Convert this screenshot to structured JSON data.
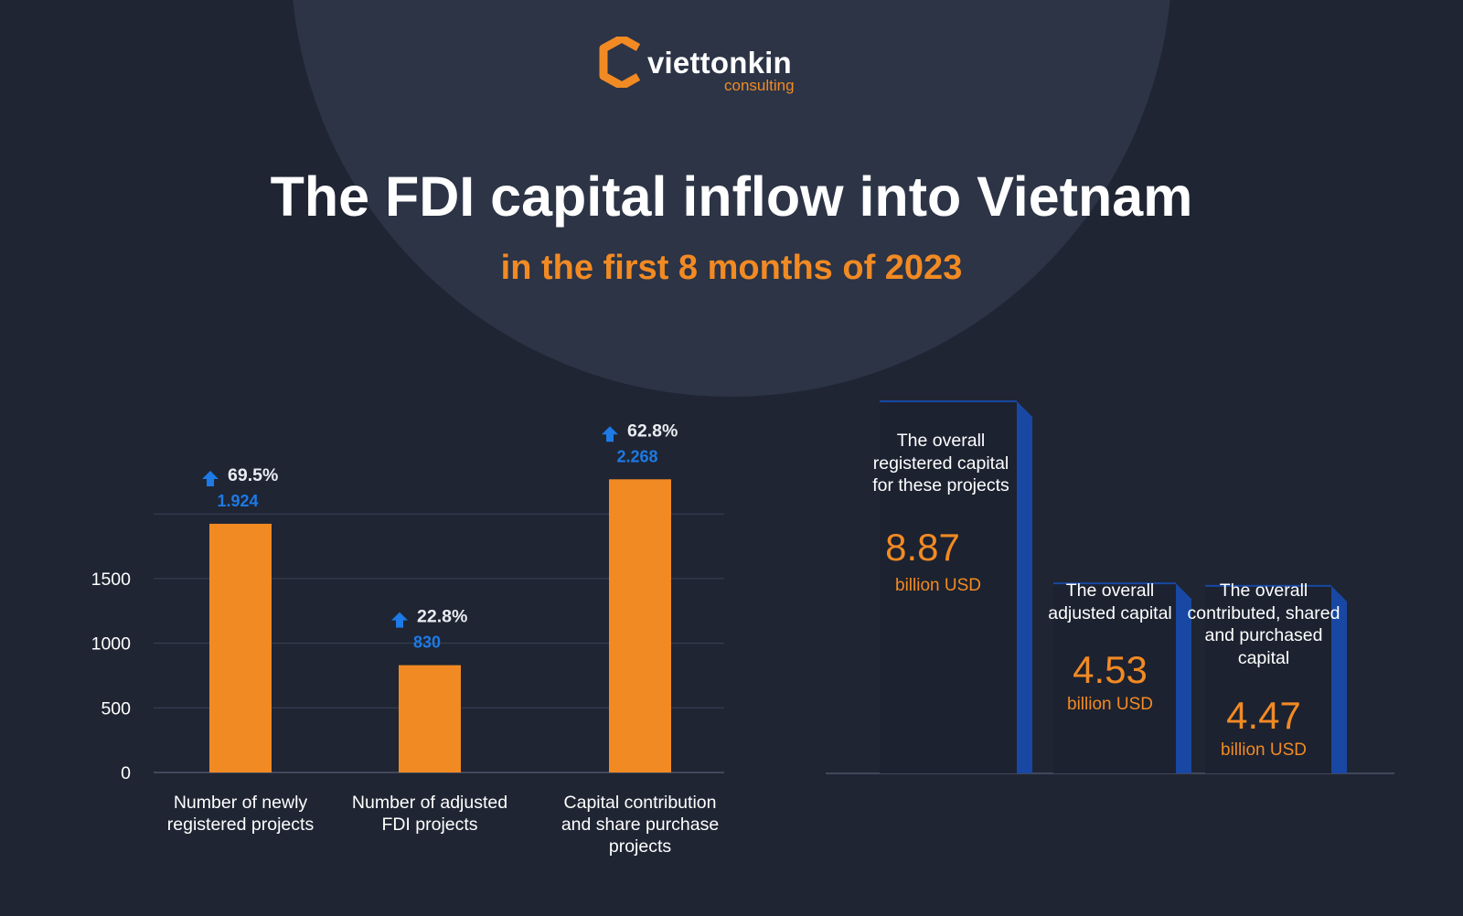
{
  "brand": {
    "name": "viettonkin",
    "tagline": "consulting",
    "colors": {
      "accent": "#f28a23",
      "background": "#1f2533",
      "blue": "#1d7ae6",
      "panel_blue": "#1848a3"
    }
  },
  "title": "The FDI capital inflow into Vietnam",
  "subtitle": "in the first 8 months of 2023",
  "chart_data": [
    {
      "type": "bar",
      "categories": [
        "Number of newly registered projects",
        "Number of adjusted FDI projects",
        "Capital contribution and share purchase projects"
      ],
      "values": [
        1924,
        830,
        2268
      ],
      "value_labels": [
        "1.924",
        "830",
        "2.268"
      ],
      "growth_labels": [
        "69.5%",
        "22.8%",
        "62.8%"
      ],
      "growth_direction": "up",
      "yticks": [
        0,
        500,
        1000,
        1500
      ],
      "ylim": [
        0,
        2000
      ],
      "grid": true,
      "bar_color": "#f28a23"
    },
    {
      "type": "bar",
      "categories": [
        "The overall registered capital for these projects",
        "The overall adjusted capital",
        "The overall contributed, shared and purchased capital"
      ],
      "values": [
        8.87,
        4.53,
        4.47
      ],
      "value_labels": [
        "8.87",
        "4.53",
        "4.47"
      ],
      "unit": "billion USD"
    }
  ]
}
